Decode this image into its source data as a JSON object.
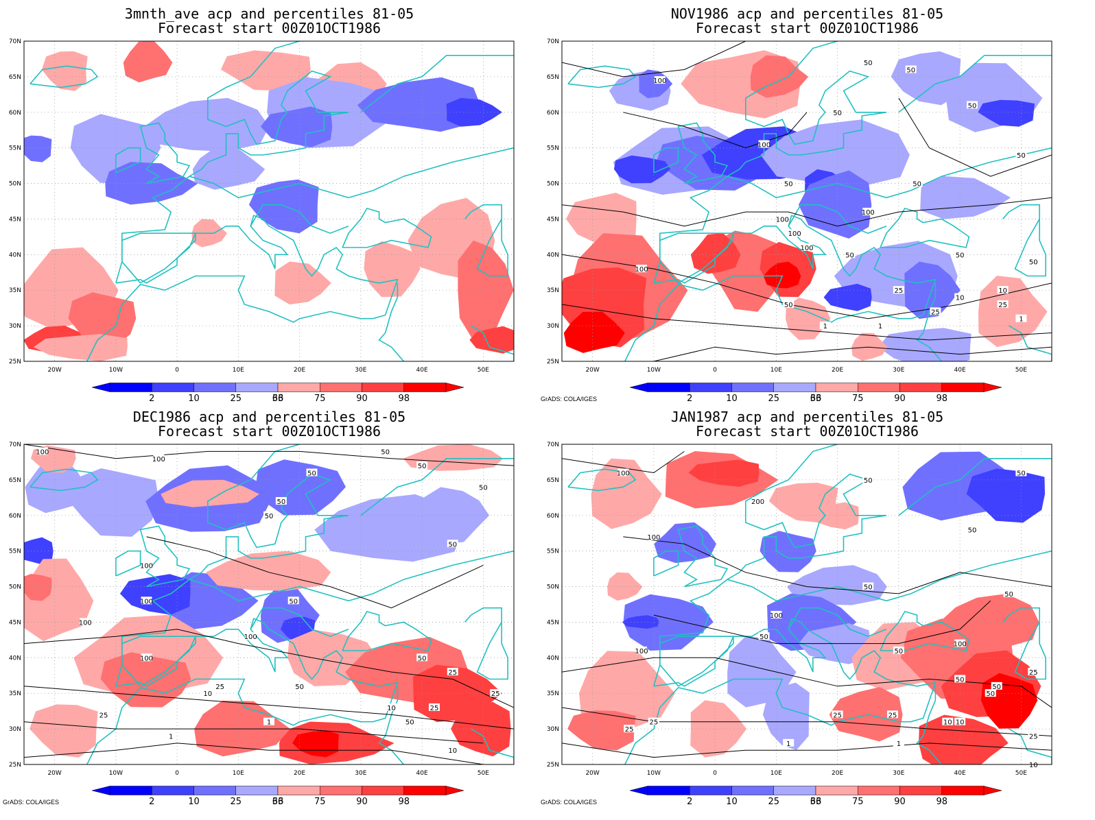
{
  "colors": {
    "blue_levels": [
      "#0000ff",
      "#4040ff",
      "#7070ff",
      "#a8a8ff"
    ],
    "red_levels": [
      "#ffa8a8",
      "#ff7070",
      "#ff4040",
      "#ff0000"
    ],
    "coast": "#20c0c0",
    "contour": "#000000",
    "grid": "#999999"
  },
  "axes": {
    "lat_labels": [
      "70N",
      "65N",
      "60N",
      "55N",
      "50N",
      "45N",
      "40N",
      "35N",
      "30N",
      "25N"
    ],
    "lon_labels": [
      "20W",
      "10W",
      "0",
      "10E",
      "20E",
      "30E",
      "40E",
      "50E"
    ]
  },
  "colorbar": {
    "labels": [
      "2",
      "10",
      "25",
      "33",
      "66",
      "75",
      "90",
      "98"
    ]
  },
  "credit": "GrADS: COLA/IGES",
  "panels": [
    {
      "title": "3mnth_ave acp and percentiles 81-05",
      "subtitle": "Forecast start 00Z01OCT1986",
      "has_contours": false,
      "contour_labels": []
    },
    {
      "title": "NOV1986 acp and percentiles 81-05",
      "subtitle": "Forecast start 00Z01OCT1986",
      "has_contours": true,
      "contour_labels": [
        "100",
        "50",
        "50",
        "50",
        "50",
        "100",
        "50",
        "50",
        "50",
        "100",
        "100",
        "100",
        "100",
        "50",
        "50",
        "100",
        "50",
        "25",
        "10",
        "25",
        "1",
        "1",
        "1",
        "50",
        "10",
        "25"
      ]
    },
    {
      "title": "DEC1986 acp and percentiles 81-05",
      "subtitle": "Forecast start 00Z01OCT1986",
      "has_contours": true,
      "contour_labels": [
        "100",
        "100",
        "50",
        "50",
        "50",
        "50",
        "50",
        "50",
        "50",
        "100",
        "100",
        "100",
        "50",
        "100",
        "100",
        "50",
        "25",
        "50",
        "25",
        "10",
        "10",
        "1",
        "1",
        "25",
        "50",
        "25",
        "10",
        "25"
      ]
    },
    {
      "title": "JAN1987 acp and percentiles 81-05",
      "subtitle": "Forecast start 00Z01OCT1986",
      "has_contours": true,
      "contour_labels": [
        "100",
        "50",
        "50",
        "200",
        "50",
        "100",
        "50",
        "100",
        "50",
        "50",
        "100",
        "50",
        "50",
        "25",
        "10",
        "1",
        "1",
        "25",
        "10",
        "25",
        "50",
        "50",
        "100",
        "25",
        "25",
        "10",
        "25"
      ]
    }
  ]
}
